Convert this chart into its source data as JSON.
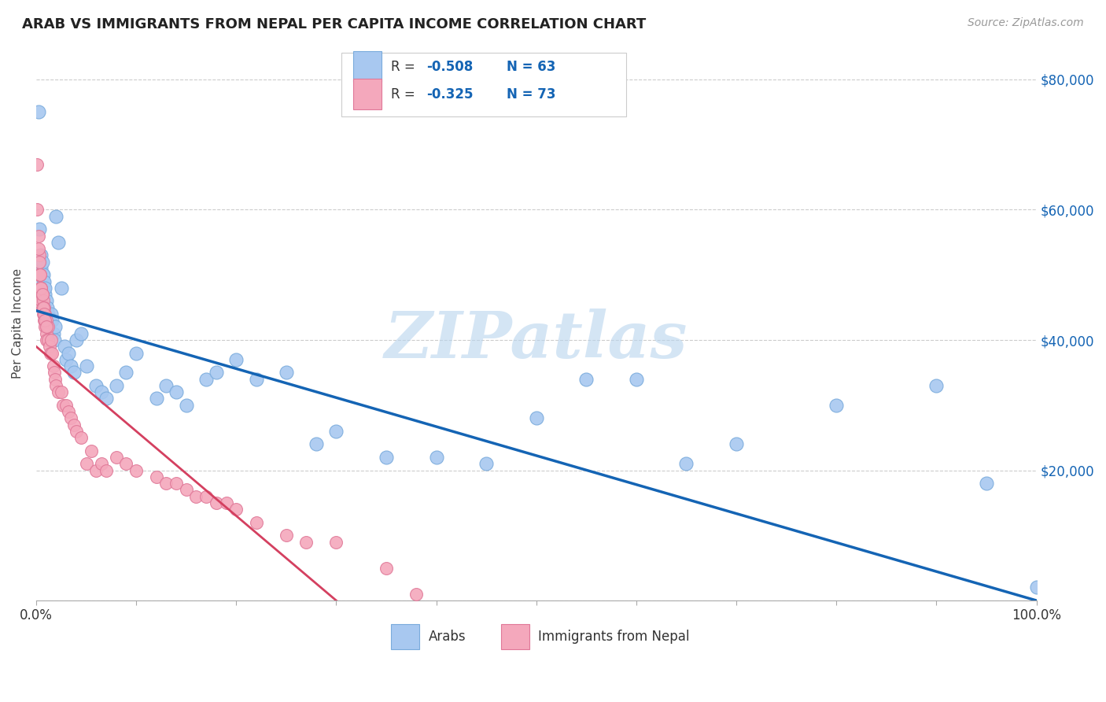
{
  "title": "ARAB VS IMMIGRANTS FROM NEPAL PER CAPITA INCOME CORRELATION CHART",
  "source": "Source: ZipAtlas.com",
  "ylabel": "Per Capita Income",
  "xlim": [
    0,
    1.0
  ],
  "ylim": [
    0,
    85000
  ],
  "xticks": [
    0.0,
    0.1,
    0.2,
    0.3,
    0.4,
    0.5,
    0.6,
    0.7,
    0.8,
    0.9,
    1.0
  ],
  "xticklabels": [
    "0.0%",
    "",
    "",
    "",
    "",
    "",
    "",
    "",
    "",
    "",
    "100.0%"
  ],
  "ytick_vals": [
    0,
    20000,
    40000,
    60000,
    80000
  ],
  "ytick_labels": [
    "",
    "$20,000",
    "$40,000",
    "$60,000",
    "$80,000"
  ],
  "background_color": "#ffffff",
  "grid_color": "#cccccc",
  "watermark": "ZIPatlas",
  "watermark_color": "#b8d4ee",
  "arab_color": "#a8c8f0",
  "arab_edge": "#7aabdc",
  "nepal_color": "#f4a8bc",
  "nepal_edge": "#e07898",
  "arab_line_color": "#1464b4",
  "nepal_line_color": "#d44060",
  "legend_color": "#1464b4",
  "arab_intercept": 44500,
  "arab_slope": -44500,
  "nepal_intercept": 39000,
  "nepal_slope": -130000,
  "nepal_line_xmax": 0.3,
  "arab_x": [
    0.002,
    0.003,
    0.004,
    0.005,
    0.006,
    0.007,
    0.008,
    0.009,
    0.01,
    0.011,
    0.012,
    0.013,
    0.014,
    0.015,
    0.016,
    0.017,
    0.018,
    0.019,
    0.02,
    0.022,
    0.025,
    0.028,
    0.03,
    0.032,
    0.035,
    0.038,
    0.04,
    0.045,
    0.05,
    0.06,
    0.065,
    0.07,
    0.08,
    0.09,
    0.1,
    0.12,
    0.13,
    0.14,
    0.15,
    0.17,
    0.18,
    0.2,
    0.22,
    0.25,
    0.28,
    0.3,
    0.35,
    0.4,
    0.45,
    0.5,
    0.55,
    0.6,
    0.65,
    0.7,
    0.8,
    0.9,
    0.95,
    1.0,
    0.005,
    0.006,
    0.007,
    0.008,
    0.009
  ],
  "arab_y": [
    75000,
    57000,
    52000,
    51000,
    50000,
    49000,
    48000,
    47000,
    46000,
    45000,
    44000,
    43000,
    43000,
    44000,
    43000,
    41000,
    40000,
    42000,
    59000,
    55000,
    48000,
    39000,
    37000,
    38000,
    36000,
    35000,
    40000,
    41000,
    36000,
    33000,
    32000,
    31000,
    33000,
    35000,
    38000,
    31000,
    33000,
    32000,
    30000,
    34000,
    35000,
    37000,
    34000,
    35000,
    24000,
    26000,
    22000,
    22000,
    21000,
    28000,
    34000,
    34000,
    21000,
    24000,
    30000,
    33000,
    18000,
    2000,
    53000,
    52000,
    50000,
    49000,
    48000
  ],
  "nepal_x": [
    0.001,
    0.001,
    0.002,
    0.002,
    0.003,
    0.003,
    0.004,
    0.004,
    0.005,
    0.005,
    0.005,
    0.006,
    0.006,
    0.007,
    0.007,
    0.008,
    0.008,
    0.009,
    0.009,
    0.01,
    0.01,
    0.01,
    0.012,
    0.012,
    0.013,
    0.014,
    0.015,
    0.016,
    0.017,
    0.018,
    0.019,
    0.02,
    0.022,
    0.025,
    0.027,
    0.03,
    0.032,
    0.035,
    0.038,
    0.04,
    0.045,
    0.05,
    0.055,
    0.06,
    0.065,
    0.07,
    0.08,
    0.09,
    0.1,
    0.12,
    0.13,
    0.14,
    0.15,
    0.16,
    0.17,
    0.18,
    0.19,
    0.2,
    0.22,
    0.25,
    0.27,
    0.3,
    0.35,
    0.38,
    0.002,
    0.003,
    0.004,
    0.005,
    0.006,
    0.007,
    0.008,
    0.009,
    0.01
  ],
  "nepal_y": [
    67000,
    60000,
    56000,
    50000,
    53000,
    50000,
    50000,
    48000,
    48000,
    47000,
    46000,
    47000,
    45000,
    46000,
    44000,
    45000,
    43000,
    44000,
    42000,
    43000,
    41000,
    40000,
    42000,
    40000,
    39000,
    38000,
    40000,
    38000,
    36000,
    35000,
    34000,
    33000,
    32000,
    32000,
    30000,
    30000,
    29000,
    28000,
    27000,
    26000,
    25000,
    21000,
    23000,
    20000,
    21000,
    20000,
    22000,
    21000,
    20000,
    19000,
    18000,
    18000,
    17000,
    16000,
    16000,
    15000,
    15000,
    14000,
    12000,
    10000,
    9000,
    9000,
    5000,
    1000,
    54000,
    52000,
    50000,
    48000,
    47000,
    45000,
    44000,
    43000,
    42000
  ]
}
